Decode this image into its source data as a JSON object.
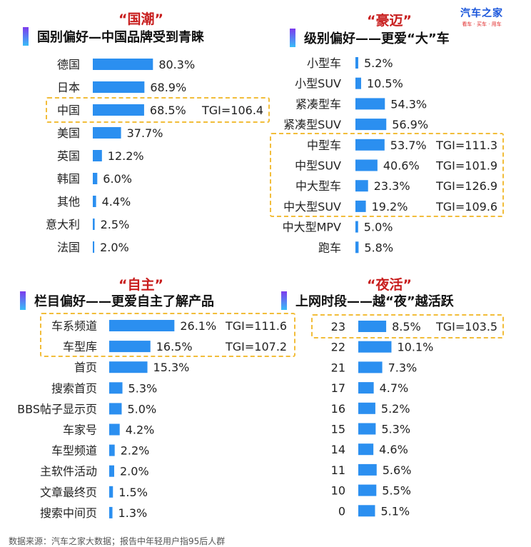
{
  "brand": {
    "name": "汽车之家",
    "tagline": "看车 · 买车 · 用车"
  },
  "footer": {
    "source": "数据来源：汽车之家大数据；报告中年轻用户指95后人群"
  },
  "colors": {
    "bar": "#2b8ff0",
    "tag": "#c81e1e",
    "highlight_border": "#f2bd3a"
  },
  "chart_data": [
    {
      "type": "bar",
      "orientation": "horizontal",
      "tag": "“国潮”",
      "title": "国别偏好—中国品牌受到青睐",
      "categories": [
        "德国",
        "日本",
        "中国",
        "美国",
        "英国",
        "韩国",
        "其他",
        "意大利",
        "法国"
      ],
      "values": [
        80.3,
        68.9,
        68.5,
        37.7,
        12.2,
        6.0,
        4.4,
        2.5,
        2.0
      ],
      "unit": "%",
      "tgi": [
        null,
        null,
        "TGI=106.4",
        null,
        null,
        null,
        null,
        null,
        null
      ],
      "highlighted": [
        "中国"
      ]
    },
    {
      "type": "bar",
      "orientation": "horizontal",
      "tag": "“豪迈”",
      "title": "级别偏好——更爱“大”车",
      "categories": [
        "小型车",
        "小型SUV",
        "紧凑型车",
        "紧凑型SUV",
        "中型车",
        "中型SUV",
        "中大型车",
        "中大型SUV",
        "中大型MPV",
        "跑车"
      ],
      "values": [
        5.2,
        10.5,
        54.3,
        56.9,
        53.7,
        40.6,
        23.3,
        19.2,
        5.0,
        5.8
      ],
      "unit": "%",
      "tgi": [
        null,
        null,
        null,
        null,
        "TGI=111.3",
        "TGI=101.9",
        "TGI=126.9",
        "TGI=109.6",
        null,
        null
      ],
      "highlighted": [
        "中型车",
        "中型SUV",
        "中大型车",
        "中大型SUV"
      ]
    },
    {
      "type": "bar",
      "orientation": "horizontal",
      "tag": "“自主”",
      "title": "栏目偏好——更爱自主了解产品",
      "categories": [
        "车系频道",
        "车型库",
        "首页",
        "搜索首页",
        "BBS帖子显示页",
        "车家号",
        "车型频道",
        "主软件活动",
        "文章最终页",
        "搜索中间页"
      ],
      "values": [
        26.1,
        16.5,
        15.3,
        5.3,
        5.0,
        4.2,
        2.2,
        2.0,
        1.5,
        1.3
      ],
      "unit": "%",
      "tgi": [
        "TGI=111.6",
        "TGI=107.2",
        null,
        null,
        null,
        null,
        null,
        null,
        null,
        null
      ],
      "highlighted": [
        "车系频道",
        "车型库"
      ]
    },
    {
      "type": "bar",
      "orientation": "horizontal",
      "tag": "“夜活”",
      "title": "上网时段——越“夜”越活跃",
      "categories": [
        "23",
        "22",
        "21",
        "17",
        "16",
        "15",
        "14",
        "11",
        "10",
        "0"
      ],
      "values": [
        8.5,
        10.1,
        7.3,
        4.7,
        5.2,
        5.3,
        4.6,
        5.6,
        5.5,
        5.1
      ],
      "unit": "%",
      "tgi": [
        "TGI=103.5",
        null,
        null,
        null,
        null,
        null,
        null,
        null,
        null,
        null
      ],
      "highlighted": [
        "23"
      ]
    }
  ]
}
